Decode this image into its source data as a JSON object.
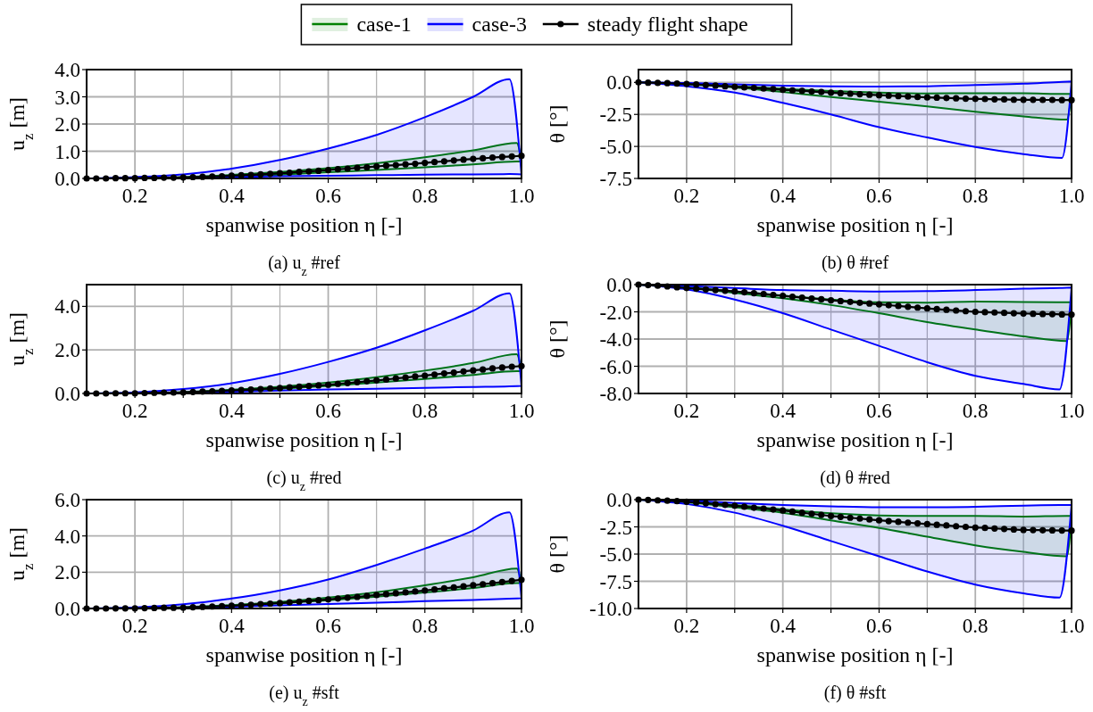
{
  "chart_data": [
    {
      "type": "line",
      "title": "(a) u$_{z}$ #ref",
      "xlabel": "spanwise position η [-]",
      "ylabel": "u$_{z}$ [m]",
      "xlim": [
        0.1,
        1.0
      ],
      "ylim": [
        0,
        4.0
      ],
      "xticks": [
        0.2,
        {
          "value": 0.3,
          "label": null
        },
        0.4,
        {
          "value": 0.5,
          "label": null
        },
        0.6,
        {
          "value": 0.7,
          "label": null
        },
        0.8,
        {
          "value": 0.9,
          "label": null
        },
        {
          "value": 1.0,
          "label": "1.0"
        }
      ],
      "yticks": [
        {
          "value": 0,
          "label": "0.0"
        },
        {
          "value": 1,
          "label": "1.0"
        },
        {
          "value": 2,
          "label": "2.0"
        },
        {
          "value": 3,
          "label": "3.0"
        },
        {
          "value": 4,
          "label": "4.0"
        }
      ],
      "grid": true,
      "legend": "top",
      "x": [
        0.1,
        0.12,
        0.14,
        0.16,
        0.18,
        0.2,
        0.22,
        0.24,
        0.26,
        0.28,
        0.3,
        0.32,
        0.34,
        0.36,
        0.38,
        0.4,
        0.42,
        0.44,
        0.46,
        0.48,
        0.5,
        0.52,
        0.54,
        0.56,
        0.58,
        0.6,
        0.62,
        0.64,
        0.66,
        0.68,
        0.7,
        0.72,
        0.74,
        0.76,
        0.78,
        0.8,
        0.82,
        0.84,
        0.86,
        0.88,
        0.9,
        0.92,
        0.94,
        0.96,
        0.98,
        1.0
      ],
      "series": [
        {
          "name": "case-1",
          "color": "#008000",
          "x": [
            0.1,
            0.2,
            0.3,
            0.4,
            0.5,
            0.6,
            0.7,
            0.8,
            0.9,
            0.99,
            1.0
          ],
          "values": [
            null,
            null,
            null,
            null,
            null,
            null,
            null,
            null,
            null,
            null,
            null
          ],
          "upper": [
            0,
            0.01,
            0.05,
            0.13,
            0.24,
            0.38,
            0.56,
            0.78,
            1.03,
            1.3,
            0.62
          ],
          "lower": [
            0,
            0.01,
            0.03,
            0.07,
            0.14,
            0.23,
            0.31,
            0.41,
            0.52,
            0.62,
            0.62
          ]
        },
        {
          "name": "case-3",
          "color": "#0000ff",
          "x": [
            0.1,
            0.2,
            0.3,
            0.4,
            0.5,
            0.6,
            0.7,
            0.8,
            0.9,
            0.975,
            1.0
          ],
          "values": [
            null,
            null,
            null,
            null,
            null,
            null,
            null,
            null,
            null,
            null,
            null
          ],
          "upper": [
            0,
            0.05,
            0.15,
            0.36,
            0.68,
            1.1,
            1.6,
            2.25,
            3.0,
            3.65,
            0.15
          ],
          "lower": [
            0,
            0.01,
            0.03,
            0.05,
            0.08,
            0.1,
            0.12,
            0.14,
            0.15,
            0.16,
            0.15
          ]
        },
        {
          "name": "steady flight shape",
          "color": "#000000",
          "marker": "circle",
          "values": [
            0,
            0,
            0,
            0.01,
            0.01,
            0.01,
            0.02,
            0.02,
            0.03,
            0.03,
            0.04,
            0.05,
            0.06,
            0.07,
            0.08,
            0.1,
            0.12,
            0.13,
            0.15,
            0.17,
            0.19,
            0.21,
            0.24,
            0.26,
            0.28,
            0.31,
            0.34,
            0.36,
            0.39,
            0.41,
            0.44,
            0.47,
            0.49,
            0.52,
            0.54,
            0.57,
            0.6,
            0.63,
            0.66,
            0.69,
            0.72,
            0.74,
            0.77,
            0.79,
            0.81,
            0.83
          ]
        }
      ]
    },
    {
      "type": "line",
      "title": "(b) θ #ref",
      "xlabel": "spanwise position η [-]",
      "ylabel": "θ [°]",
      "xlim": [
        0.1,
        1.0
      ],
      "ylim": [
        -7.5,
        1.0
      ],
      "xticks": [
        0.2,
        {
          "value": 0.3,
          "label": null
        },
        0.4,
        {
          "value": 0.5,
          "label": null
        },
        0.6,
        {
          "value": 0.7,
          "label": null
        },
        0.8,
        {
          "value": 0.9,
          "label": null
        },
        {
          "value": 1.0,
          "label": "1.0"
        }
      ],
      "yticks": [
        {
          "value": 0,
          "label": "0.0"
        },
        {
          "value": -2.5,
          "label": "-2.5"
        },
        {
          "value": -5,
          "label": "-5.0"
        },
        {
          "value": -7.5,
          "label": "-7.5"
        }
      ],
      "grid": true,
      "x": [
        0.1,
        0.12,
        0.14,
        0.16,
        0.18,
        0.2,
        0.22,
        0.24,
        0.26,
        0.28,
        0.3,
        0.32,
        0.34,
        0.36,
        0.38,
        0.4,
        0.42,
        0.44,
        0.46,
        0.48,
        0.5,
        0.52,
        0.54,
        0.56,
        0.58,
        0.6,
        0.62,
        0.64,
        0.66,
        0.68,
        0.7,
        0.72,
        0.74,
        0.76,
        0.78,
        0.8,
        0.82,
        0.84,
        0.86,
        0.88,
        0.9,
        0.92,
        0.94,
        0.96,
        0.98,
        1.0
      ],
      "series": [
        {
          "color": "#008000",
          "x": [
            0.1,
            0.2,
            0.3,
            0.4,
            0.5,
            0.6,
            0.7,
            0.8,
            0.9,
            0.99,
            1.0
          ],
          "values": [
            null,
            null,
            null,
            null,
            null,
            null,
            null,
            null,
            null,
            null,
            null
          ],
          "upper": [
            0,
            -0.1,
            -0.3,
            -0.5,
            -0.68,
            -0.8,
            -0.86,
            -0.84,
            -0.85,
            -0.9,
            -0.9
          ],
          "lower": [
            0,
            -0.15,
            -0.4,
            -0.75,
            -1.15,
            -1.5,
            -1.88,
            -2.3,
            -2.65,
            -2.9,
            -0.9
          ]
        },
        {
          "color": "#0000ff",
          "x": [
            0.1,
            0.2,
            0.3,
            0.4,
            0.5,
            0.6,
            0.7,
            0.8,
            0.9,
            0.98,
            1.0
          ],
          "values": [
            null,
            null,
            null,
            null,
            null,
            null,
            null,
            null,
            null,
            null,
            null
          ],
          "upper": [
            0,
            -0.05,
            -0.15,
            -0.25,
            -0.3,
            -0.32,
            -0.3,
            -0.2,
            -0.1,
            0.05,
            0.08
          ],
          "lower": [
            0,
            -0.3,
            -0.8,
            -1.6,
            -2.5,
            -3.5,
            -4.3,
            -5.05,
            -5.6,
            -5.9,
            0.08
          ]
        },
        {
          "color": "#000000",
          "marker": "circle",
          "values": [
            0,
            -0.02,
            -0.04,
            -0.06,
            -0.09,
            -0.12,
            -0.16,
            -0.21,
            -0.25,
            -0.3,
            -0.34,
            -0.39,
            -0.43,
            -0.48,
            -0.52,
            -0.57,
            -0.62,
            -0.66,
            -0.71,
            -0.75,
            -0.8,
            -0.84,
            -0.88,
            -0.92,
            -0.96,
            -1.0,
            -1.03,
            -1.07,
            -1.1,
            -1.14,
            -1.17,
            -1.19,
            -1.22,
            -1.24,
            -1.27,
            -1.29,
            -1.3,
            -1.32,
            -1.33,
            -1.35,
            -1.36,
            -1.36,
            -1.37,
            -1.37,
            -1.38,
            -1.38
          ]
        }
      ]
    },
    {
      "type": "line",
      "title": "(c) u$_{z}$ #red",
      "xlabel": "spanwise position η [-]",
      "ylabel": "u$_{z}$ [m]",
      "xlim": [
        0.1,
        1.0
      ],
      "ylim": [
        0,
        5.0
      ],
      "xticks": [
        0.2,
        {
          "value": 0.3,
          "label": null
        },
        0.4,
        {
          "value": 0.5,
          "label": null
        },
        0.6,
        {
          "value": 0.7,
          "label": null
        },
        0.8,
        {
          "value": 0.9,
          "label": null
        },
        {
          "value": 1.0,
          "label": "1.0"
        }
      ],
      "yticks": [
        {
          "value": 0,
          "label": "0.0"
        },
        {
          "value": 2,
          "label": "2.0"
        },
        {
          "value": 4,
          "label": "4.0"
        }
      ],
      "grid": true,
      "x": [
        0.1,
        0.12,
        0.14,
        0.16,
        0.18,
        0.2,
        0.22,
        0.24,
        0.26,
        0.28,
        0.3,
        0.32,
        0.34,
        0.36,
        0.38,
        0.4,
        0.42,
        0.44,
        0.46,
        0.48,
        0.5,
        0.52,
        0.54,
        0.56,
        0.58,
        0.6,
        0.62,
        0.64,
        0.66,
        0.68,
        0.7,
        0.72,
        0.74,
        0.76,
        0.78,
        0.8,
        0.82,
        0.84,
        0.86,
        0.88,
        0.9,
        0.92,
        0.94,
        0.96,
        0.98,
        1.0
      ],
      "series": [
        {
          "color": "#008000",
          "x": [
            0.1,
            0.2,
            0.3,
            0.4,
            0.5,
            0.6,
            0.7,
            0.8,
            0.9,
            0.99,
            1.0
          ],
          "values": [
            null,
            null,
            null,
            null,
            null,
            null,
            null,
            null,
            null,
            null,
            null
          ],
          "upper": [
            0,
            0.01,
            0.06,
            0.17,
            0.31,
            0.5,
            0.75,
            1.05,
            1.4,
            1.8,
            1.02
          ],
          "lower": [
            0,
            0.01,
            0.05,
            0.12,
            0.22,
            0.35,
            0.5,
            0.67,
            0.85,
            1.02,
            1.02
          ]
        },
        {
          "color": "#0000ff",
          "x": [
            0.1,
            0.2,
            0.3,
            0.4,
            0.5,
            0.6,
            0.7,
            0.8,
            0.9,
            0.975,
            1.0
          ],
          "values": [
            null,
            null,
            null,
            null,
            null,
            null,
            null,
            null,
            null,
            null,
            null
          ],
          "upper": [
            0,
            0.05,
            0.2,
            0.47,
            0.9,
            1.45,
            2.1,
            2.9,
            3.8,
            4.6,
            0.35
          ],
          "lower": [
            0,
            0.01,
            0.04,
            0.08,
            0.13,
            0.18,
            0.22,
            0.26,
            0.3,
            0.33,
            0.35
          ]
        },
        {
          "color": "#000000",
          "marker": "circle",
          "values": [
            0,
            0,
            0,
            0.01,
            0.01,
            0.01,
            0.02,
            0.03,
            0.04,
            0.04,
            0.05,
            0.07,
            0.09,
            0.1,
            0.12,
            0.14,
            0.16,
            0.18,
            0.2,
            0.23,
            0.25,
            0.28,
            0.31,
            0.34,
            0.37,
            0.4,
            0.44,
            0.48,
            0.52,
            0.56,
            0.6,
            0.64,
            0.69,
            0.73,
            0.78,
            0.82,
            0.87,
            0.92,
            0.96,
            1.01,
            1.06,
            1.1,
            1.15,
            1.19,
            1.23,
            1.26
          ]
        }
      ]
    },
    {
      "type": "line",
      "title": "(d) θ #red",
      "xlabel": "spanwise position η [-]",
      "ylabel": "θ [°]",
      "xlim": [
        0.1,
        1.0
      ],
      "ylim": [
        -8.0,
        0
      ],
      "xticks": [
        0.2,
        {
          "value": 0.3,
          "label": null
        },
        0.4,
        {
          "value": 0.5,
          "label": null
        },
        0.6,
        {
          "value": 0.7,
          "label": null
        },
        0.8,
        {
          "value": 0.9,
          "label": null
        },
        {
          "value": 1.0,
          "label": "1.0"
        }
      ],
      "yticks": [
        {
          "value": 0,
          "label": "0.0"
        },
        {
          "value": -2,
          "label": "-2.0"
        },
        {
          "value": -4,
          "label": "-4.0"
        },
        {
          "value": -6,
          "label": "-6.0"
        },
        {
          "value": -8,
          "label": "-8.0"
        }
      ],
      "grid": true,
      "x": [
        0.1,
        0.12,
        0.14,
        0.16,
        0.18,
        0.2,
        0.22,
        0.24,
        0.26,
        0.28,
        0.3,
        0.32,
        0.34,
        0.36,
        0.38,
        0.4,
        0.42,
        0.44,
        0.46,
        0.48,
        0.5,
        0.52,
        0.54,
        0.56,
        0.58,
        0.6,
        0.62,
        0.64,
        0.66,
        0.68,
        0.7,
        0.72,
        0.74,
        0.76,
        0.78,
        0.8,
        0.82,
        0.84,
        0.86,
        0.88,
        0.9,
        0.92,
        0.94,
        0.96,
        0.98,
        1.0
      ],
      "series": [
        {
          "color": "#008000",
          "x": [
            0.1,
            0.2,
            0.3,
            0.4,
            0.5,
            0.6,
            0.7,
            0.8,
            0.9,
            0.99,
            1.0
          ],
          "values": [
            null,
            null,
            null,
            null,
            null,
            null,
            null,
            null,
            null,
            null,
            null
          ],
          "upper": [
            0,
            -0.2,
            -0.5,
            -0.8,
            -1.1,
            -1.3,
            -1.32,
            -1.25,
            -1.28,
            -1.3,
            -1.3
          ],
          "lower": [
            0,
            -0.25,
            -0.6,
            -1.0,
            -1.5,
            -2.1,
            -2.75,
            -3.3,
            -3.8,
            -4.15,
            -1.3
          ]
        },
        {
          "color": "#0000ff",
          "x": [
            0.1,
            0.2,
            0.3,
            0.4,
            0.5,
            0.6,
            0.7,
            0.8,
            0.9,
            0.975,
            1.0
          ],
          "values": [
            null,
            null,
            null,
            null,
            null,
            null,
            null,
            null,
            null,
            null,
            null
          ],
          "upper": [
            0,
            -0.1,
            -0.25,
            -0.4,
            -0.45,
            -0.5,
            -0.48,
            -0.4,
            -0.3,
            -0.25,
            -0.22
          ],
          "lower": [
            0,
            -0.35,
            -1.1,
            -2.1,
            -3.3,
            -4.5,
            -5.7,
            -6.7,
            -7.3,
            -7.7,
            -0.22
          ]
        },
        {
          "color": "#000000",
          "marker": "circle",
          "values": [
            0,
            -0.04,
            -0.08,
            -0.13,
            -0.19,
            -0.25,
            -0.3,
            -0.35,
            -0.4,
            -0.45,
            -0.5,
            -0.56,
            -0.63,
            -0.69,
            -0.76,
            -0.82,
            -0.89,
            -0.95,
            -1.02,
            -1.08,
            -1.15,
            -1.21,
            -1.27,
            -1.33,
            -1.39,
            -1.45,
            -1.51,
            -1.57,
            -1.63,
            -1.69,
            -1.75,
            -1.8,
            -1.85,
            -1.9,
            -1.95,
            -2.0,
            -2.03,
            -2.05,
            -2.08,
            -2.1,
            -2.12,
            -2.14,
            -2.16,
            -2.17,
            -2.19,
            -2.2
          ]
        }
      ]
    },
    {
      "type": "line",
      "title": "(e) u$_{z}$ #sft",
      "xlabel": "spanwise position η [-]",
      "ylabel": "u$_{z}$ [m]",
      "xlim": [
        0.1,
        1.0
      ],
      "ylim": [
        0,
        6.0
      ],
      "xticks": [
        0.2,
        {
          "value": 0.3,
          "label": null
        },
        0.4,
        {
          "value": 0.5,
          "label": null
        },
        0.6,
        {
          "value": 0.7,
          "label": null
        },
        0.8,
        {
          "value": 0.9,
          "label": null
        },
        {
          "value": 1.0,
          "label": "1.0"
        }
      ],
      "yticks": [
        {
          "value": 0,
          "label": "0.0"
        },
        {
          "value": 2,
          "label": "2.0"
        },
        {
          "value": 4,
          "label": "4.0"
        },
        {
          "value": 6,
          "label": "6.0"
        }
      ],
      "grid": true,
      "x": [
        0.1,
        0.12,
        0.14,
        0.16,
        0.18,
        0.2,
        0.22,
        0.24,
        0.26,
        0.28,
        0.3,
        0.32,
        0.34,
        0.36,
        0.38,
        0.4,
        0.42,
        0.44,
        0.46,
        0.48,
        0.5,
        0.52,
        0.54,
        0.56,
        0.58,
        0.6,
        0.62,
        0.64,
        0.66,
        0.68,
        0.7,
        0.72,
        0.74,
        0.76,
        0.78,
        0.8,
        0.82,
        0.84,
        0.86,
        0.88,
        0.9,
        0.92,
        0.94,
        0.96,
        0.98,
        1.0
      ],
      "series": [
        {
          "color": "#008000",
          "x": [
            0.1,
            0.2,
            0.3,
            0.4,
            0.5,
            0.6,
            0.7,
            0.8,
            0.9,
            0.99,
            1.0
          ],
          "values": [
            null,
            null,
            null,
            null,
            null,
            null,
            null,
            null,
            null,
            null,
            null
          ],
          "upper": [
            0,
            0.01,
            0.07,
            0.19,
            0.36,
            0.6,
            0.9,
            1.28,
            1.72,
            2.2,
            1.4
          ],
          "lower": [
            0,
            0.01,
            0.06,
            0.15,
            0.28,
            0.45,
            0.65,
            0.88,
            1.13,
            1.4,
            1.4
          ]
        },
        {
          "color": "#0000ff",
          "x": [
            0.1,
            0.2,
            0.3,
            0.4,
            0.5,
            0.6,
            0.7,
            0.8,
            0.9,
            0.975,
            1.0
          ],
          "values": [
            null,
            null,
            null,
            null,
            null,
            null,
            null,
            null,
            null,
            null,
            null
          ],
          "upper": [
            0,
            0.06,
            0.23,
            0.55,
            1.0,
            1.6,
            2.4,
            3.3,
            4.3,
            5.3,
            0.57
          ],
          "lower": [
            0,
            0.01,
            0.05,
            0.1,
            0.17,
            0.25,
            0.32,
            0.4,
            0.47,
            0.54,
            0.57
          ]
        },
        {
          "color": "#000000",
          "marker": "circle",
          "values": [
            0,
            0,
            0,
            0.01,
            0.01,
            0.01,
            0.02,
            0.03,
            0.04,
            0.04,
            0.05,
            0.07,
            0.09,
            0.11,
            0.13,
            0.15,
            0.18,
            0.21,
            0.24,
            0.27,
            0.3,
            0.34,
            0.38,
            0.42,
            0.46,
            0.5,
            0.55,
            0.6,
            0.64,
            0.69,
            0.74,
            0.79,
            0.84,
            0.89,
            0.94,
            0.99,
            1.05,
            1.11,
            1.16,
            1.22,
            1.28,
            1.34,
            1.4,
            1.46,
            1.52,
            1.58
          ]
        }
      ]
    },
    {
      "type": "line",
      "title": "(f) θ #sft",
      "xlabel": "spanwise position η [-]",
      "ylabel": "θ [°]",
      "xlim": [
        0.1,
        1.0
      ],
      "ylim": [
        -10.0,
        0
      ],
      "xticks": [
        0.2,
        {
          "value": 0.3,
          "label": null
        },
        0.4,
        {
          "value": 0.5,
          "label": null
        },
        0.6,
        {
          "value": 0.7,
          "label": null
        },
        0.8,
        {
          "value": 0.9,
          "label": null
        },
        {
          "value": 1.0,
          "label": "1.0"
        }
      ],
      "yticks": [
        {
          "value": 0,
          "label": "0.0"
        },
        {
          "value": -2.5,
          "label": "-2.5"
        },
        {
          "value": -5,
          "label": "-5.0"
        },
        {
          "value": -7.5,
          "label": "-7.5"
        },
        {
          "value": -10,
          "label": "-10.0"
        }
      ],
      "grid": true,
      "x": [
        0.1,
        0.12,
        0.14,
        0.16,
        0.18,
        0.2,
        0.22,
        0.24,
        0.26,
        0.28,
        0.3,
        0.32,
        0.34,
        0.36,
        0.38,
        0.4,
        0.42,
        0.44,
        0.46,
        0.48,
        0.5,
        0.52,
        0.54,
        0.56,
        0.58,
        0.6,
        0.62,
        0.64,
        0.66,
        0.68,
        0.7,
        0.72,
        0.74,
        0.76,
        0.78,
        0.8,
        0.82,
        0.84,
        0.86,
        0.88,
        0.9,
        0.92,
        0.94,
        0.96,
        0.98,
        1.0
      ],
      "series": [
        {
          "color": "#008000",
          "x": [
            0.1,
            0.2,
            0.3,
            0.4,
            0.5,
            0.6,
            0.7,
            0.8,
            0.9,
            0.99,
            1.0
          ],
          "values": [
            null,
            null,
            null,
            null,
            null,
            null,
            null,
            null,
            null,
            null,
            null
          ],
          "upper": [
            0,
            -0.2,
            -0.5,
            -0.9,
            -1.25,
            -1.45,
            -1.5,
            -1.5,
            -1.55,
            -1.5,
            -1.5
          ],
          "lower": [
            0,
            -0.25,
            -0.7,
            -1.2,
            -1.9,
            -2.6,
            -3.4,
            -4.2,
            -4.8,
            -5.2,
            -1.5
          ]
        },
        {
          "color": "#0000ff",
          "x": [
            0.1,
            0.2,
            0.3,
            0.4,
            0.5,
            0.6,
            0.7,
            0.8,
            0.9,
            0.975,
            1.0
          ],
          "values": [
            null,
            null,
            null,
            null,
            null,
            null,
            null,
            null,
            null,
            null,
            null
          ],
          "upper": [
            0,
            -0.1,
            -0.3,
            -0.5,
            -0.62,
            -0.7,
            -0.7,
            -0.65,
            -0.55,
            -0.5,
            -0.5
          ],
          "lower": [
            0,
            -0.4,
            -1.2,
            -2.4,
            -3.8,
            -5.2,
            -6.6,
            -7.8,
            -8.6,
            -9.0,
            -0.5
          ]
        },
        {
          "color": "#000000",
          "marker": "circle",
          "values": [
            0,
            -0.03,
            -0.06,
            -0.1,
            -0.14,
            -0.19,
            -0.26,
            -0.33,
            -0.41,
            -0.48,
            -0.56,
            -0.65,
            -0.74,
            -0.82,
            -0.91,
            -1.0,
            -1.1,
            -1.2,
            -1.3,
            -1.4,
            -1.5,
            -1.58,
            -1.66,
            -1.74,
            -1.82,
            -1.9,
            -1.97,
            -2.04,
            -2.11,
            -2.18,
            -2.25,
            -2.31,
            -2.37,
            -2.44,
            -2.5,
            -2.56,
            -2.6,
            -2.65,
            -2.69,
            -2.74,
            -2.78,
            -2.79,
            -2.81,
            -2.82,
            -2.83,
            -2.84
          ]
        }
      ]
    }
  ]
}
